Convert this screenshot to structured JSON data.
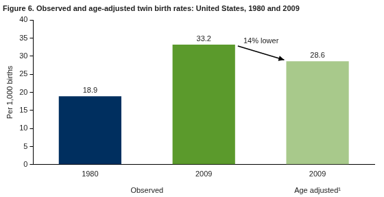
{
  "chart_data": {
    "type": "bar",
    "title": "Figure 6. Observed and age-adjusted twin birth rates: United States, 1980 and 2009",
    "y_label": "Per 1,000 births",
    "categories": [
      "1980",
      "2009",
      "2009"
    ],
    "values": [
      18.9,
      33.2,
      28.6
    ],
    "colors": [
      "#002f5f",
      "#5b9a2c",
      "#a8c98b"
    ],
    "group_labels": [
      "Observed",
      "Observed",
      "Age adjusted¹"
    ],
    "annotations": [
      {
        "text": "14% lower"
      }
    ],
    "ylim": [
      0,
      40
    ],
    "yticks": [
      0,
      5,
      10,
      15,
      20,
      25,
      30,
      35,
      40
    ],
    "grid": false,
    "data_labels": true
  }
}
